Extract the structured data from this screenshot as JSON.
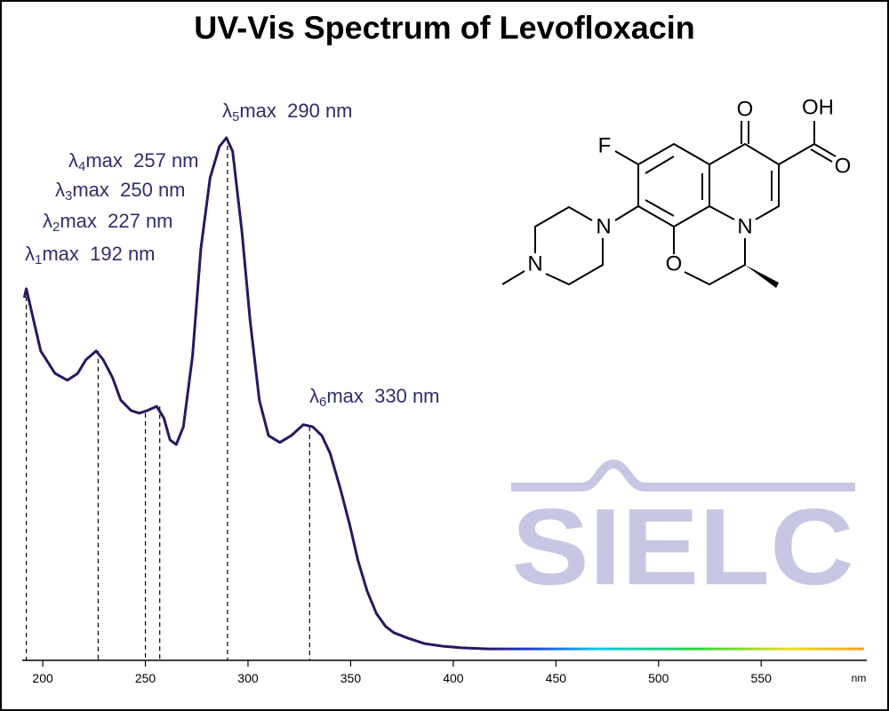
{
  "chart_data": {
    "type": "line",
    "title": "UV-Vis Spectrum of Levofloxacin",
    "x_unit": "nm",
    "x": [
      191,
      192,
      199,
      206,
      212,
      217,
      221,
      226,
      229.5,
      234,
      238,
      243,
      247,
      251,
      255.5,
      259,
      262,
      265,
      268.5,
      273,
      277,
      281.5,
      286,
      289.5,
      292.5,
      297,
      301,
      305.5,
      310,
      315.5,
      321,
      327,
      331.5,
      336,
      340,
      345,
      349.5,
      353.5,
      358,
      362.5,
      367,
      371,
      377.5,
      386,
      395,
      404,
      417,
      600
    ],
    "series": [
      {
        "color": "#2b1660",
        "values": [
          0.694,
          0.711,
          0.592,
          0.549,
          0.536,
          0.549,
          0.575,
          0.592,
          0.575,
          0.541,
          0.498,
          0.478,
          0.473,
          0.478,
          0.486,
          0.464,
          0.422,
          0.413,
          0.447,
          0.583,
          0.787,
          0.923,
          0.983,
          1.0,
          0.974,
          0.821,
          0.651,
          0.498,
          0.43,
          0.417,
          0.43,
          0.451,
          0.447,
          0.43,
          0.396,
          0.328,
          0.26,
          0.192,
          0.133,
          0.09,
          0.065,
          0.053,
          0.043,
          0.032,
          0.027,
          0.024,
          0.022,
          0.022
        ]
      }
    ],
    "xlim": [
      190,
      601
    ],
    "ylim": [
      0,
      1
    ],
    "xticks": [
      200,
      250,
      300,
      350,
      400,
      450,
      500,
      550
    ],
    "annotations": [
      {
        "symbol": "λ",
        "index": "1",
        "text": "max  192 nm",
        "x": 192,
        "y": 0.711
      },
      {
        "symbol": "λ",
        "index": "2",
        "text": "max  227 nm",
        "x": 227,
        "y": 0.592
      },
      {
        "symbol": "λ",
        "index": "3",
        "text": "max  250 nm",
        "x": 250,
        "y": 0.473
      },
      {
        "symbol": "λ",
        "index": "4",
        "text": "max  257 nm",
        "x": 257,
        "y": 0.486
      },
      {
        "symbol": "λ",
        "index": "5",
        "text": "max  290 nm",
        "x": 290,
        "y": 1.0
      },
      {
        "symbol": "λ",
        "index": "6",
        "text": "max  330 nm",
        "x": 330,
        "y": 0.447
      }
    ]
  },
  "structure": {
    "atoms": [
      "F",
      "O",
      "OH",
      "O",
      "N",
      "N",
      "N",
      "O"
    ]
  },
  "watermark": "SIELC"
}
